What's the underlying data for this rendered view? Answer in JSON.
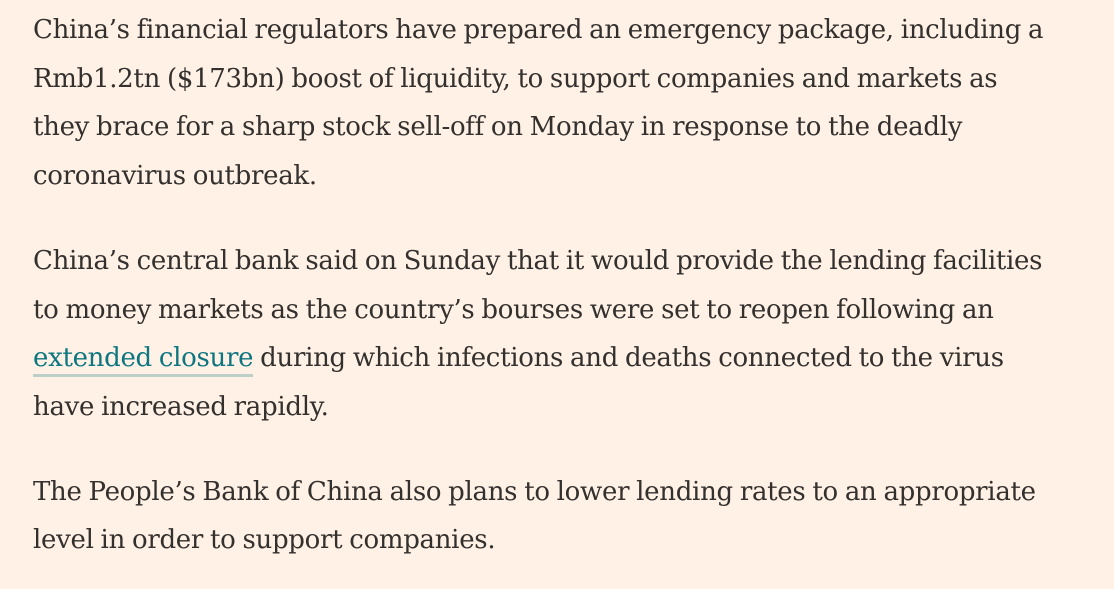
{
  "article": {
    "paragraph_1": {
      "line_1": "China’s financial regulators have prepared an emergency package, including a",
      "line_2": "Rmb1.2tn ($173bn) boost of liquidity, to support companies and markets as",
      "line_3": "they brace for a sharp stock sell-off on Monday in response to the deadly",
      "line_4": "coronavirus outbreak."
    },
    "paragraph_2": {
      "line_1": "China’s central bank said on Sunday that it would provide the lending facilities",
      "line_2": "to money markets as the country’s bourses were set to reopen following an",
      "link_text": "extended closure",
      "line_3_rest": " during which infections and deaths connected to the virus",
      "line_4": "have increased rapidly."
    },
    "paragraph_3": {
      "line_1": "The People’s Bank of China also plans to lower lending rates to an appropriate",
      "line_2": "level in order to support companies."
    }
  },
  "colors": {
    "background": "#FFF1E5",
    "text": "#33302E",
    "link": "#0D7680"
  }
}
